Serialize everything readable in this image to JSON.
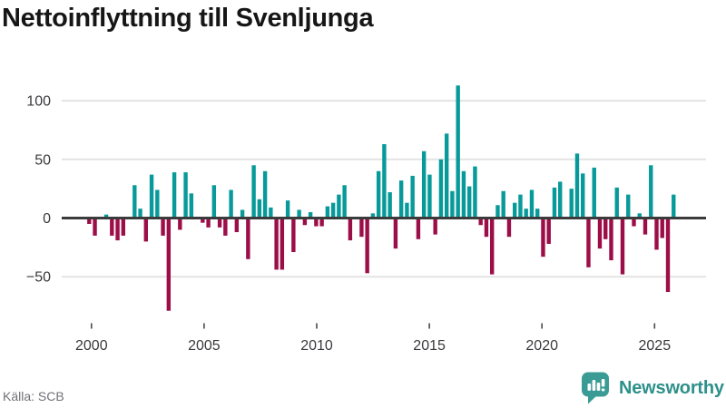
{
  "page": {
    "title": "Nettoinflyttning till Svenljunga",
    "source_label": "Källa: SCB",
    "brand": {
      "name": "Newsworthy",
      "color": "#2e908a"
    }
  },
  "chart_data": {
    "type": "bar",
    "title": "Nettoinflyttning till Svenljunga",
    "xlabel": "",
    "ylabel": "",
    "frequency": "quarterly",
    "grid": true,
    "legend": "none",
    "x_axis": {
      "tick_years": [
        2000,
        2005,
        2010,
        2015,
        2020,
        2025
      ],
      "tick_labels": [
        "2000",
        "2005",
        "2010",
        "2015",
        "2020",
        "2025"
      ],
      "range_years": [
        1998.7,
        2027.3
      ]
    },
    "y_axis": {
      "ticks": [
        100,
        50,
        0,
        -50
      ],
      "tick_labels": [
        "100",
        "50",
        "0",
        "−50"
      ],
      "range": [
        -85,
        118
      ]
    },
    "colors": {
      "positive": "#089a9a",
      "negative": "#9c0e48",
      "zero_line": "#3b3b3b",
      "grid_line": "#e3e3e3",
      "axis_text": "#3a3a3e",
      "tick_mark": "#4a4a4a"
    },
    "series": [
      {
        "name": "Nettoinflyttning",
        "start": "2000-Q1",
        "end": "2025-Q4",
        "years": [
          {
            "year": 2000,
            "values": [
              -5,
              -15,
              0,
              3
            ]
          },
          {
            "year": 2001,
            "values": [
              -15,
              -19,
              -15,
              0
            ]
          },
          {
            "year": 2002,
            "values": [
              28,
              8,
              -20,
              37
            ]
          },
          {
            "year": 2003,
            "values": [
              24,
              -15,
              -79,
              39
            ]
          },
          {
            "year": 2004,
            "values": [
              -10,
              39,
              21,
              0
            ]
          },
          {
            "year": 2005,
            "values": [
              -4,
              -8,
              28,
              -8
            ]
          },
          {
            "year": 2006,
            "values": [
              -15,
              24,
              -12,
              7
            ]
          },
          {
            "year": 2007,
            "values": [
              -35,
              45,
              16,
              40
            ]
          },
          {
            "year": 2008,
            "values": [
              9,
              -44,
              -44,
              15
            ]
          },
          {
            "year": 2009,
            "values": [
              -29,
              7,
              -6,
              5
            ]
          },
          {
            "year": 2010,
            "values": [
              -7,
              -7,
              10,
              13
            ]
          },
          {
            "year": 2011,
            "values": [
              20,
              28,
              -19,
              0
            ]
          },
          {
            "year": 2012,
            "values": [
              -16,
              -47,
              4,
              40
            ]
          },
          {
            "year": 2013,
            "values": [
              63,
              22,
              -26,
              32
            ]
          },
          {
            "year": 2014,
            "values": [
              13,
              36,
              -18,
              57
            ]
          },
          {
            "year": 2015,
            "values": [
              37,
              -14,
              50,
              72
            ]
          },
          {
            "year": 2016,
            "values": [
              23,
              113,
              40,
              27
            ]
          },
          {
            "year": 2017,
            "values": [
              44,
              -6,
              -16,
              -48
            ]
          },
          {
            "year": 2018,
            "values": [
              11,
              23,
              -16,
              13
            ]
          },
          {
            "year": 2019,
            "values": [
              20,
              8,
              24,
              8
            ]
          },
          {
            "year": 2020,
            "values": [
              -33,
              -22,
              26,
              31
            ]
          },
          {
            "year": 2021,
            "values": [
              0,
              25,
              55,
              38
            ]
          },
          {
            "year": 2022,
            "values": [
              -42,
              43,
              -26,
              -18
            ]
          },
          {
            "year": 2023,
            "values": [
              -36,
              26,
              -48,
              20
            ]
          },
          {
            "year": 2024,
            "values": [
              -7,
              4,
              -14,
              45
            ]
          },
          {
            "year": 2025,
            "values": [
              -27,
              -17,
              -63,
              20
            ]
          }
        ]
      }
    ]
  }
}
